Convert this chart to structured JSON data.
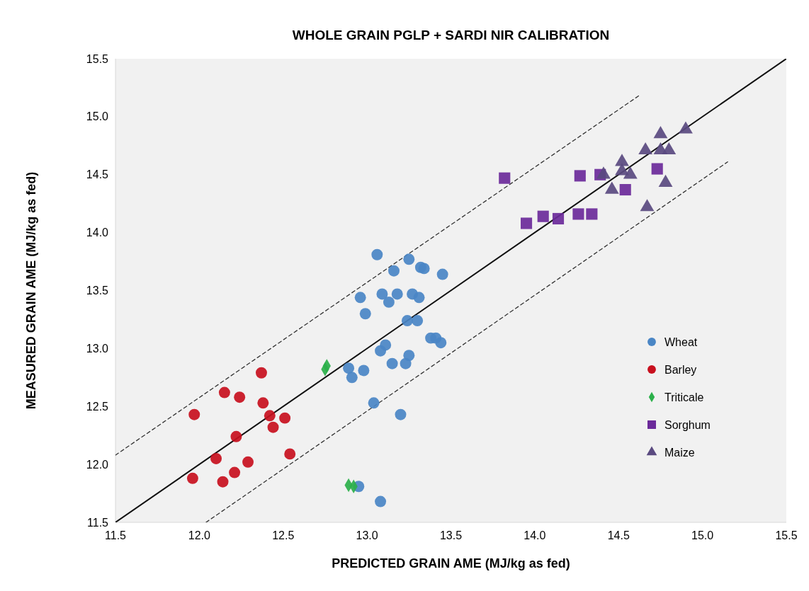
{
  "chart_data": {
    "type": "scatter",
    "title": "WHOLE GRAIN PGLP + SARDI NIR CALIBRATION",
    "xlabel": "PREDICTED GRAIN AME (MJ/kg as fed)",
    "ylabel": "MEASURED GRAIN AME (MJ/kg as fed)",
    "xlim": [
      11.5,
      15.5
    ],
    "ylim": [
      11.5,
      15.5
    ],
    "xticks": [
      11.5,
      {
        "value": 12,
        "label": "12.0"
      },
      12.5,
      {
        "value": 13,
        "label": "13.0"
      },
      13.5,
      {
        "value": 14,
        "label": "14.0"
      },
      14.5,
      {
        "value": 15,
        "label": "15.0"
      },
      15.5
    ],
    "yticks": [
      11.5,
      {
        "value": 12,
        "label": "12.0"
      },
      12.5,
      {
        "value": 13,
        "label": "13.0"
      },
      13.5,
      {
        "value": 14,
        "label": "14.0"
      },
      14.5,
      {
        "value": 15,
        "label": "15.0"
      },
      15.5
    ],
    "grid": false,
    "legend": "bottom right",
    "series": [
      {
        "type": "line",
        "color": "#111111",
        "line_style": "solid",
        "x": [
          11.5,
          15.5
        ],
        "values": [
          11.5,
          15.5
        ]
      },
      {
        "type": "line",
        "color": "#333333",
        "line_style": "dashed",
        "x": [
          11.5,
          14.63
        ],
        "values": [
          12.08,
          15.19
        ]
      },
      {
        "type": "line",
        "color": "#333333",
        "line_style": "dashed",
        "x": [
          12.04,
          15.15
        ],
        "values": [
          11.5,
          14.61
        ]
      },
      {
        "name": "Wheat",
        "color": "#4a86c5",
        "marker": "circle",
        "x": [
          13.06,
          13.25,
          13.32,
          13.34,
          13.16,
          13.45,
          12.96,
          13.09,
          13.18,
          13.27,
          13.31,
          13.13,
          12.99,
          13.24,
          13.3,
          13.38,
          13.41,
          13.44,
          13.11,
          13.08,
          13.25,
          13.15,
          13.23,
          12.89,
          12.98,
          12.91,
          13.04,
          13.2,
          12.95,
          13.08
        ],
        "values": [
          13.81,
          13.77,
          13.7,
          13.69,
          13.67,
          13.64,
          13.44,
          13.47,
          13.47,
          13.47,
          13.44,
          13.4,
          13.3,
          13.24,
          13.24,
          13.09,
          13.09,
          13.05,
          13.03,
          12.98,
          12.94,
          12.87,
          12.87,
          12.83,
          12.81,
          12.75,
          12.53,
          12.43,
          11.81,
          11.68
        ]
      },
      {
        "name": "Barley",
        "color": "#c8101e",
        "marker": "circle",
        "x": [
          11.97,
          12.15,
          12.24,
          12.37,
          12.38,
          12.42,
          12.51,
          12.44,
          12.22,
          12.1,
          12.54,
          12.29,
          12.21,
          12.14,
          11.96
        ],
        "values": [
          12.43,
          12.62,
          12.58,
          12.79,
          12.53,
          12.42,
          12.4,
          12.32,
          12.24,
          12.05,
          12.09,
          12.02,
          11.93,
          11.85,
          11.88
        ]
      },
      {
        "name": "Triticale",
        "color": "#2bb04a",
        "marker": "diamond",
        "x": [
          12.76,
          12.75,
          12.89,
          12.92
        ],
        "values": [
          12.85,
          12.82,
          11.82,
          11.81
        ]
      },
      {
        "name": "Sorghum",
        "color": "#6b2a9a",
        "marker": "square",
        "x": [
          13.82,
          14.27,
          14.39,
          14.73,
          14.54,
          13.95,
          14.05,
          14.14,
          14.26,
          14.34
        ],
        "values": [
          14.47,
          14.49,
          14.5,
          14.55,
          14.37,
          14.08,
          14.14,
          14.12,
          14.16,
          14.16
        ]
      },
      {
        "name": "Maize",
        "color": "#5a4a80",
        "marker": "triangle",
        "x": [
          14.75,
          14.9,
          14.66,
          14.75,
          14.8,
          14.52,
          14.41,
          14.52,
          14.57,
          14.46,
          14.78,
          14.67
        ],
        "values": [
          14.85,
          14.89,
          14.71,
          14.71,
          14.71,
          14.61,
          14.5,
          14.53,
          14.5,
          14.37,
          14.43,
          14.22
        ]
      }
    ]
  }
}
